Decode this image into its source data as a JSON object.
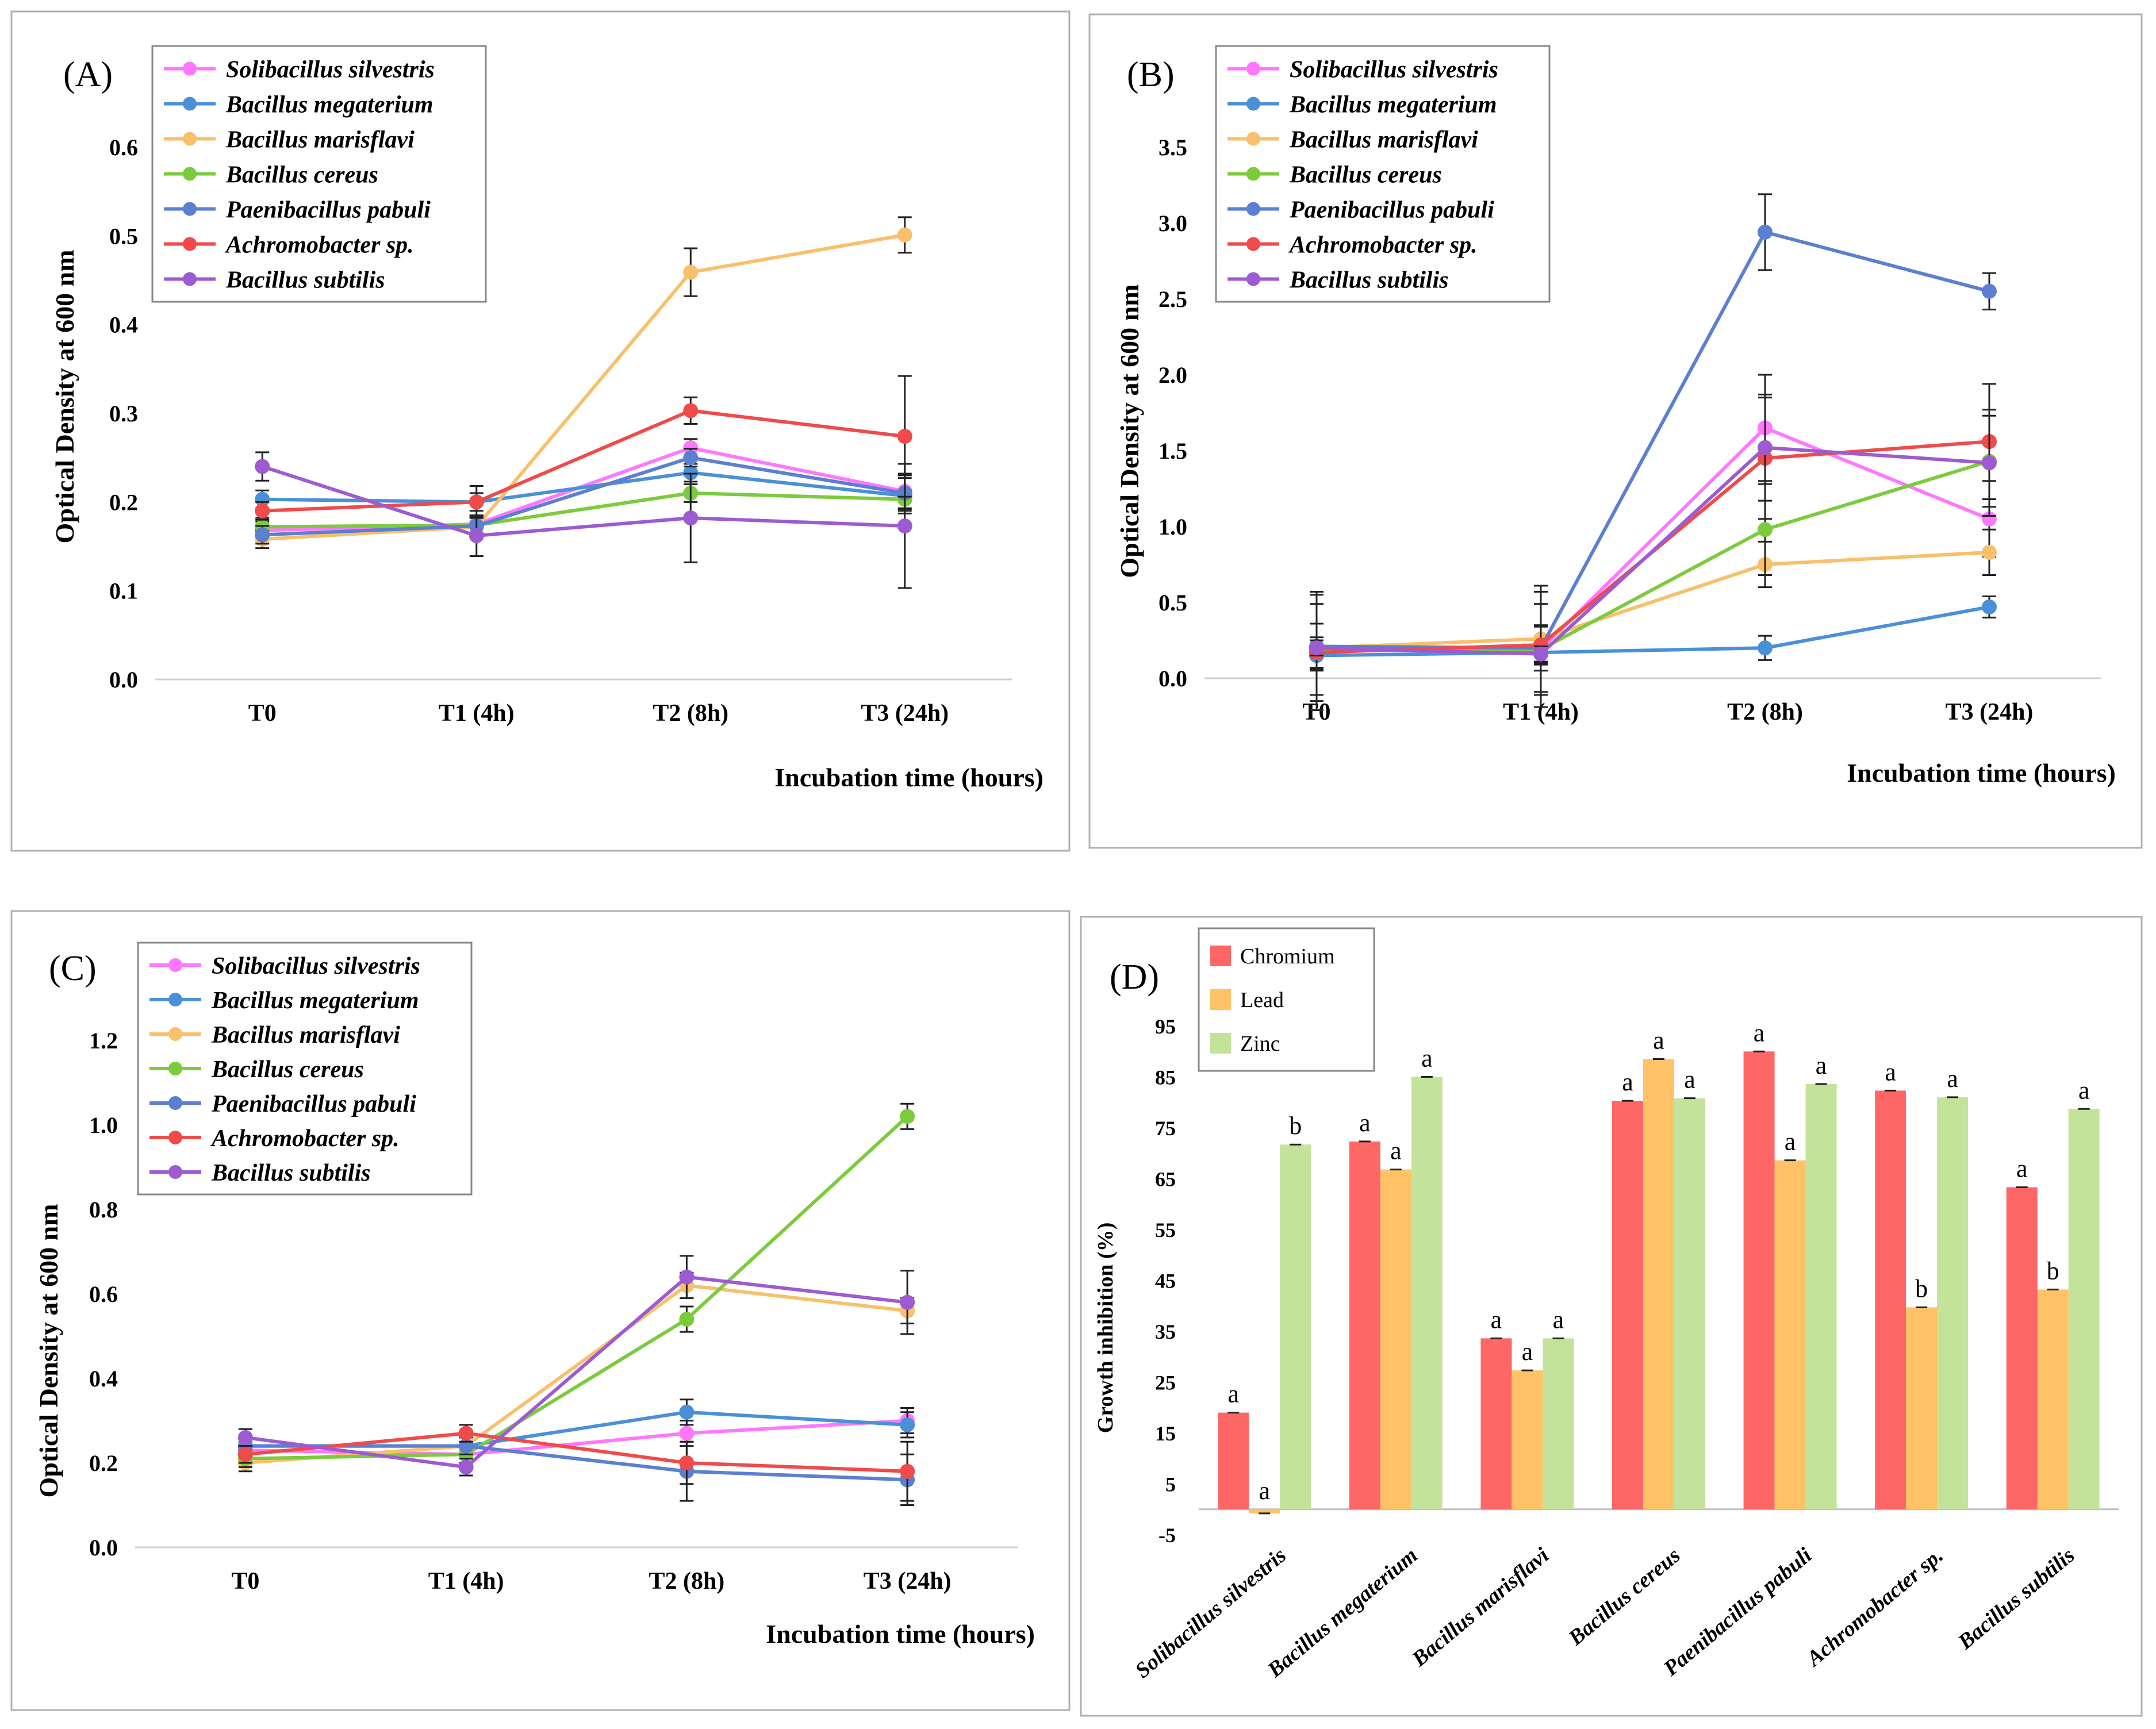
{
  "chart_data": [
    {
      "panel": "(A)",
      "type": "line",
      "categories": [
        "T0",
        "T1 (4h)",
        "T2 (8h)",
        "T3 (24h)"
      ],
      "ylabel": "Optical Density at 600 nm",
      "xlabel": "Incubation time (hours)",
      "ylim": [
        0,
        0.6
      ],
      "yticks": [
        "0.0",
        "0.1",
        "0.2",
        "0.3",
        "0.4",
        "0.5",
        "0.6"
      ],
      "series": [
        {
          "name": "Solibacillus silvestris",
          "color": "#ff77ff",
          "values": [
            0.168,
            0.175,
            0.261,
            0.212
          ],
          "errors": [
            0.01,
            0.01,
            0.01,
            0.02
          ]
        },
        {
          "name": "Bacillus megaterium",
          "color": "#4a90d9",
          "values": [
            0.203,
            0.2,
            0.233,
            0.207
          ],
          "errors": [
            0.01,
            0.01,
            0.01,
            0.02
          ]
        },
        {
          "name": "Bacillus marisflavi",
          "color": "#f8c06b",
          "values": [
            0.158,
            0.172,
            0.459,
            0.501
          ],
          "errors": [
            0.01,
            0.01,
            0.027,
            0.02
          ]
        },
        {
          "name": "Bacillus cereus",
          "color": "#7ccb3c",
          "values": [
            0.172,
            0.174,
            0.21,
            0.203
          ],
          "errors": [
            0.01,
            0.01,
            0.01,
            0.01
          ]
        },
        {
          "name": "Paenibacillus pabuli",
          "color": "#5b7fd1",
          "values": [
            0.163,
            0.173,
            0.25,
            0.21
          ],
          "errors": [
            0.01,
            0.01,
            0.01,
            0.02
          ]
        },
        {
          "name": "Achromobacter sp.",
          "color": "#f04a4a",
          "values": [
            0.19,
            0.2,
            0.303,
            0.274
          ],
          "errors": [
            0.01,
            0.018,
            0.015,
            0.068
          ]
        },
        {
          "name": "Bacillus subtilis",
          "color": "#9d5bd2",
          "values": [
            0.24,
            0.162,
            0.182,
            0.173
          ],
          "errors": [
            0.016,
            0.023,
            0.05,
            0.07
          ]
        }
      ]
    },
    {
      "panel": "(B)",
      "type": "line",
      "categories": [
        "T0",
        "T1 (4h)",
        "T2 (8h)",
        "T3 (24h)"
      ],
      "ylabel": "Optical Density at 600 nm",
      "xlabel": "Incubation time (hours)",
      "ylim": [
        0,
        3.5
      ],
      "yticks": [
        "0.0",
        "0.5",
        "1.0",
        "1.5",
        "2.0",
        "2.5",
        "3.0",
        "3.5"
      ],
      "series": [
        {
          "name": "Solibacillus silvestris",
          "color": "#ff77ff",
          "values": [
            0.18,
            0.19,
            1.65,
            1.05
          ],
          "errors": [
            0.39,
            0.38,
            0.35,
            0.25
          ]
        },
        {
          "name": "Bacillus megaterium",
          "color": "#4a90d9",
          "values": [
            0.15,
            0.17,
            0.2,
            0.47
          ],
          "errors": [
            0.1,
            0.08,
            0.08,
            0.07
          ]
        },
        {
          "name": "Bacillus marisflavi",
          "color": "#f8c06b",
          "values": [
            0.2,
            0.26,
            0.75,
            0.83
          ],
          "errors": [
            0.35,
            0.35,
            0.15,
            0.15
          ]
        },
        {
          "name": "Bacillus cereus",
          "color": "#7ccb3c",
          "values": [
            0.19,
            0.19,
            0.98,
            1.43
          ],
          "errors": [
            0.3,
            0.3,
            0.3,
            0.3
          ]
        },
        {
          "name": "Paenibacillus pabuli",
          "color": "#5b7fd1",
          "values": [
            0.21,
            0.2,
            2.94,
            2.55
          ],
          "errors": [
            0.15,
            0.15,
            0.25,
            0.12
          ]
        },
        {
          "name": "Achromobacter sp.",
          "color": "#f04a4a",
          "values": [
            0.17,
            0.22,
            1.45,
            1.56
          ],
          "errors": [
            0.1,
            0.12,
            0.4,
            0.38
          ]
        },
        {
          "name": "Bacillus subtilis",
          "color": "#9d5bd2",
          "values": [
            0.2,
            0.16,
            1.52,
            1.42
          ],
          "errors": [
            0.05,
            0.05,
            0.35,
            0.35
          ]
        }
      ]
    },
    {
      "panel": "(C)",
      "type": "line",
      "categories": [
        "T0",
        "T1 (4h)",
        "T2 (8h)",
        "T3 (24h)"
      ],
      "ylabel": "Optical Density at 600 nm",
      "xlabel": "Incubation time (hours)",
      "ylim": [
        0,
        1.2
      ],
      "yticks": [
        "0.0",
        "0.2",
        "0.4",
        "0.6",
        "0.8",
        "1.0",
        "1.2"
      ],
      "series": [
        {
          "name": "Solibacillus silvestris",
          "color": "#ff77ff",
          "values": [
            0.23,
            0.22,
            0.27,
            0.3
          ],
          "errors": [
            0.02,
            0.02,
            0.03,
            0.03
          ]
        },
        {
          "name": "Bacillus megaterium",
          "color": "#4a90d9",
          "values": [
            0.24,
            0.24,
            0.32,
            0.29
          ],
          "errors": [
            0.02,
            0.02,
            0.03,
            0.03
          ]
        },
        {
          "name": "Bacillus marisflavi",
          "color": "#f8c06b",
          "values": [
            0.2,
            0.24,
            0.62,
            0.56
          ],
          "errors": [
            0.02,
            0.02,
            0.03,
            0.03
          ]
        },
        {
          "name": "Bacillus cereus",
          "color": "#7ccb3c",
          "values": [
            0.21,
            0.22,
            0.54,
            1.02
          ],
          "errors": [
            0.02,
            0.02,
            0.03,
            0.03
          ]
        },
        {
          "name": "Paenibacillus pabuli",
          "color": "#5b7fd1",
          "values": [
            0.24,
            0.24,
            0.18,
            0.16
          ],
          "errors": [
            0.02,
            0.02,
            0.07,
            0.06
          ]
        },
        {
          "name": "Achromobacter sp.",
          "color": "#f04a4a",
          "values": [
            0.22,
            0.27,
            0.2,
            0.18
          ],
          "errors": [
            0.02,
            0.02,
            0.05,
            0.07
          ]
        },
        {
          "name": "Bacillus subtilis",
          "color": "#9d5bd2",
          "values": [
            0.26,
            0.19,
            0.64,
            0.58
          ],
          "errors": [
            0.02,
            0.02,
            0.05,
            0.075
          ]
        }
      ]
    },
    {
      "panel": "(D)",
      "type": "bar",
      "categories": [
        "Solibacillus silvestris",
        "Bacillus megaterium",
        "Bacillus marisflavi",
        "Bacillus cereus",
        "Paenibacillus pabuli",
        "Achromobacter sp.",
        "Bacillus subtilis"
      ],
      "ylabel": "Growth inhibition  (%)",
      "ylim": [
        -5,
        95
      ],
      "yticks": [
        "-5",
        "5",
        "15",
        "25",
        "35",
        "45",
        "55",
        "65",
        "75",
        "85",
        "95"
      ],
      "series": [
        {
          "name": "Chromium",
          "color": "#ff6666",
          "values": [
            19,
            72.3,
            33.6,
            80.3,
            90,
            82.3,
            63.3
          ],
          "letters": [
            "a",
            "a",
            "a",
            "a",
            "a",
            "a",
            "a"
          ]
        },
        {
          "name": "Lead",
          "color": "#ffc266",
          "values": [
            -0.8,
            66.8,
            27.3,
            88.5,
            68.6,
            39.7,
            43.2
          ],
          "letters": [
            "a",
            "a",
            "a",
            "a",
            "a",
            "b",
            "b"
          ]
        },
        {
          "name": "Zinc",
          "color": "#c3e39a",
          "values": [
            71.7,
            85,
            33.6,
            80.8,
            83.6,
            81,
            78.7
          ],
          "letters": [
            "b",
            "a",
            "a",
            "a",
            "a",
            "a",
            "a"
          ]
        }
      ]
    }
  ]
}
